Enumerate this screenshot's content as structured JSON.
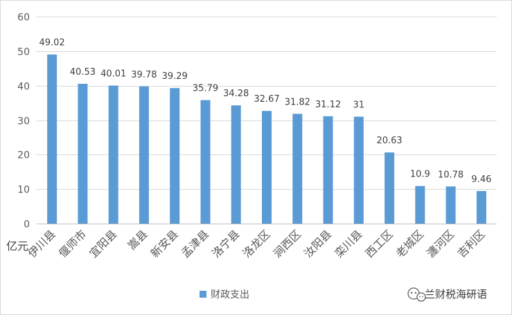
{
  "chart_data": {
    "type": "bar",
    "ylabel": "亿元",
    "ylim": [
      0,
      60
    ],
    "yticks": [
      0,
      10,
      20,
      30,
      40,
      50,
      60
    ],
    "grid": true,
    "legend_position": "bottom",
    "categories": [
      "伊川县",
      "偃师市",
      "宜阳县",
      "嵩县",
      "新安县",
      "孟津县",
      "洛宁县",
      "洛龙区",
      "涧西区",
      "汝阳县",
      "栾川县",
      "西工区",
      "老城区",
      "瀍河区",
      "吉利区"
    ],
    "series": [
      {
        "name": "财政支出",
        "values": [
          49.02,
          40.53,
          40.01,
          39.78,
          39.29,
          35.79,
          34.28,
          32.67,
          31.82,
          31.12,
          31,
          20.63,
          10.9,
          10.78,
          9.46
        ],
        "value_labels": [
          "49.02",
          "40.53",
          "40.01",
          "39.78",
          "39.29",
          "35.79",
          "34.28",
          "32.67",
          "31.82",
          "31.12",
          "31",
          "20.63",
          "10.9",
          "10.78",
          "9.46"
        ]
      }
    ],
    "colors": {
      "bar": "#5B9BD5",
      "grid": "#d9d9d9",
      "axis": "#bfbfbf"
    }
  },
  "watermark": {
    "icon": "wechat-icon",
    "text": "兰财税海研语"
  }
}
